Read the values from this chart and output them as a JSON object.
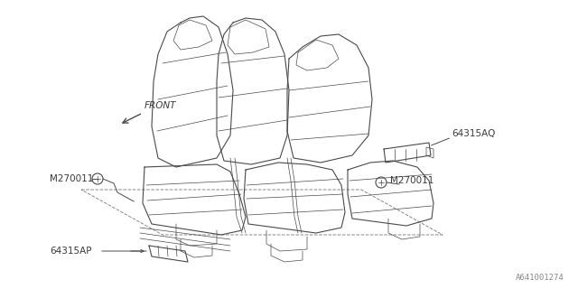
{
  "bg_color": "#ffffff",
  "line_color": "#4a4a4a",
  "text_color": "#3a3a3a",
  "figure_id": "A641001274",
  "fig_width": 6.4,
  "fig_height": 3.2,
  "dpi": 100,
  "labels": {
    "front": "FRONT",
    "part1": "64315AQ",
    "part2_left": "M270011",
    "part2_right": "M270011",
    "part4": "64315AP"
  },
  "seat_color": "#f0f0f0",
  "seat_line_color": "#555555"
}
